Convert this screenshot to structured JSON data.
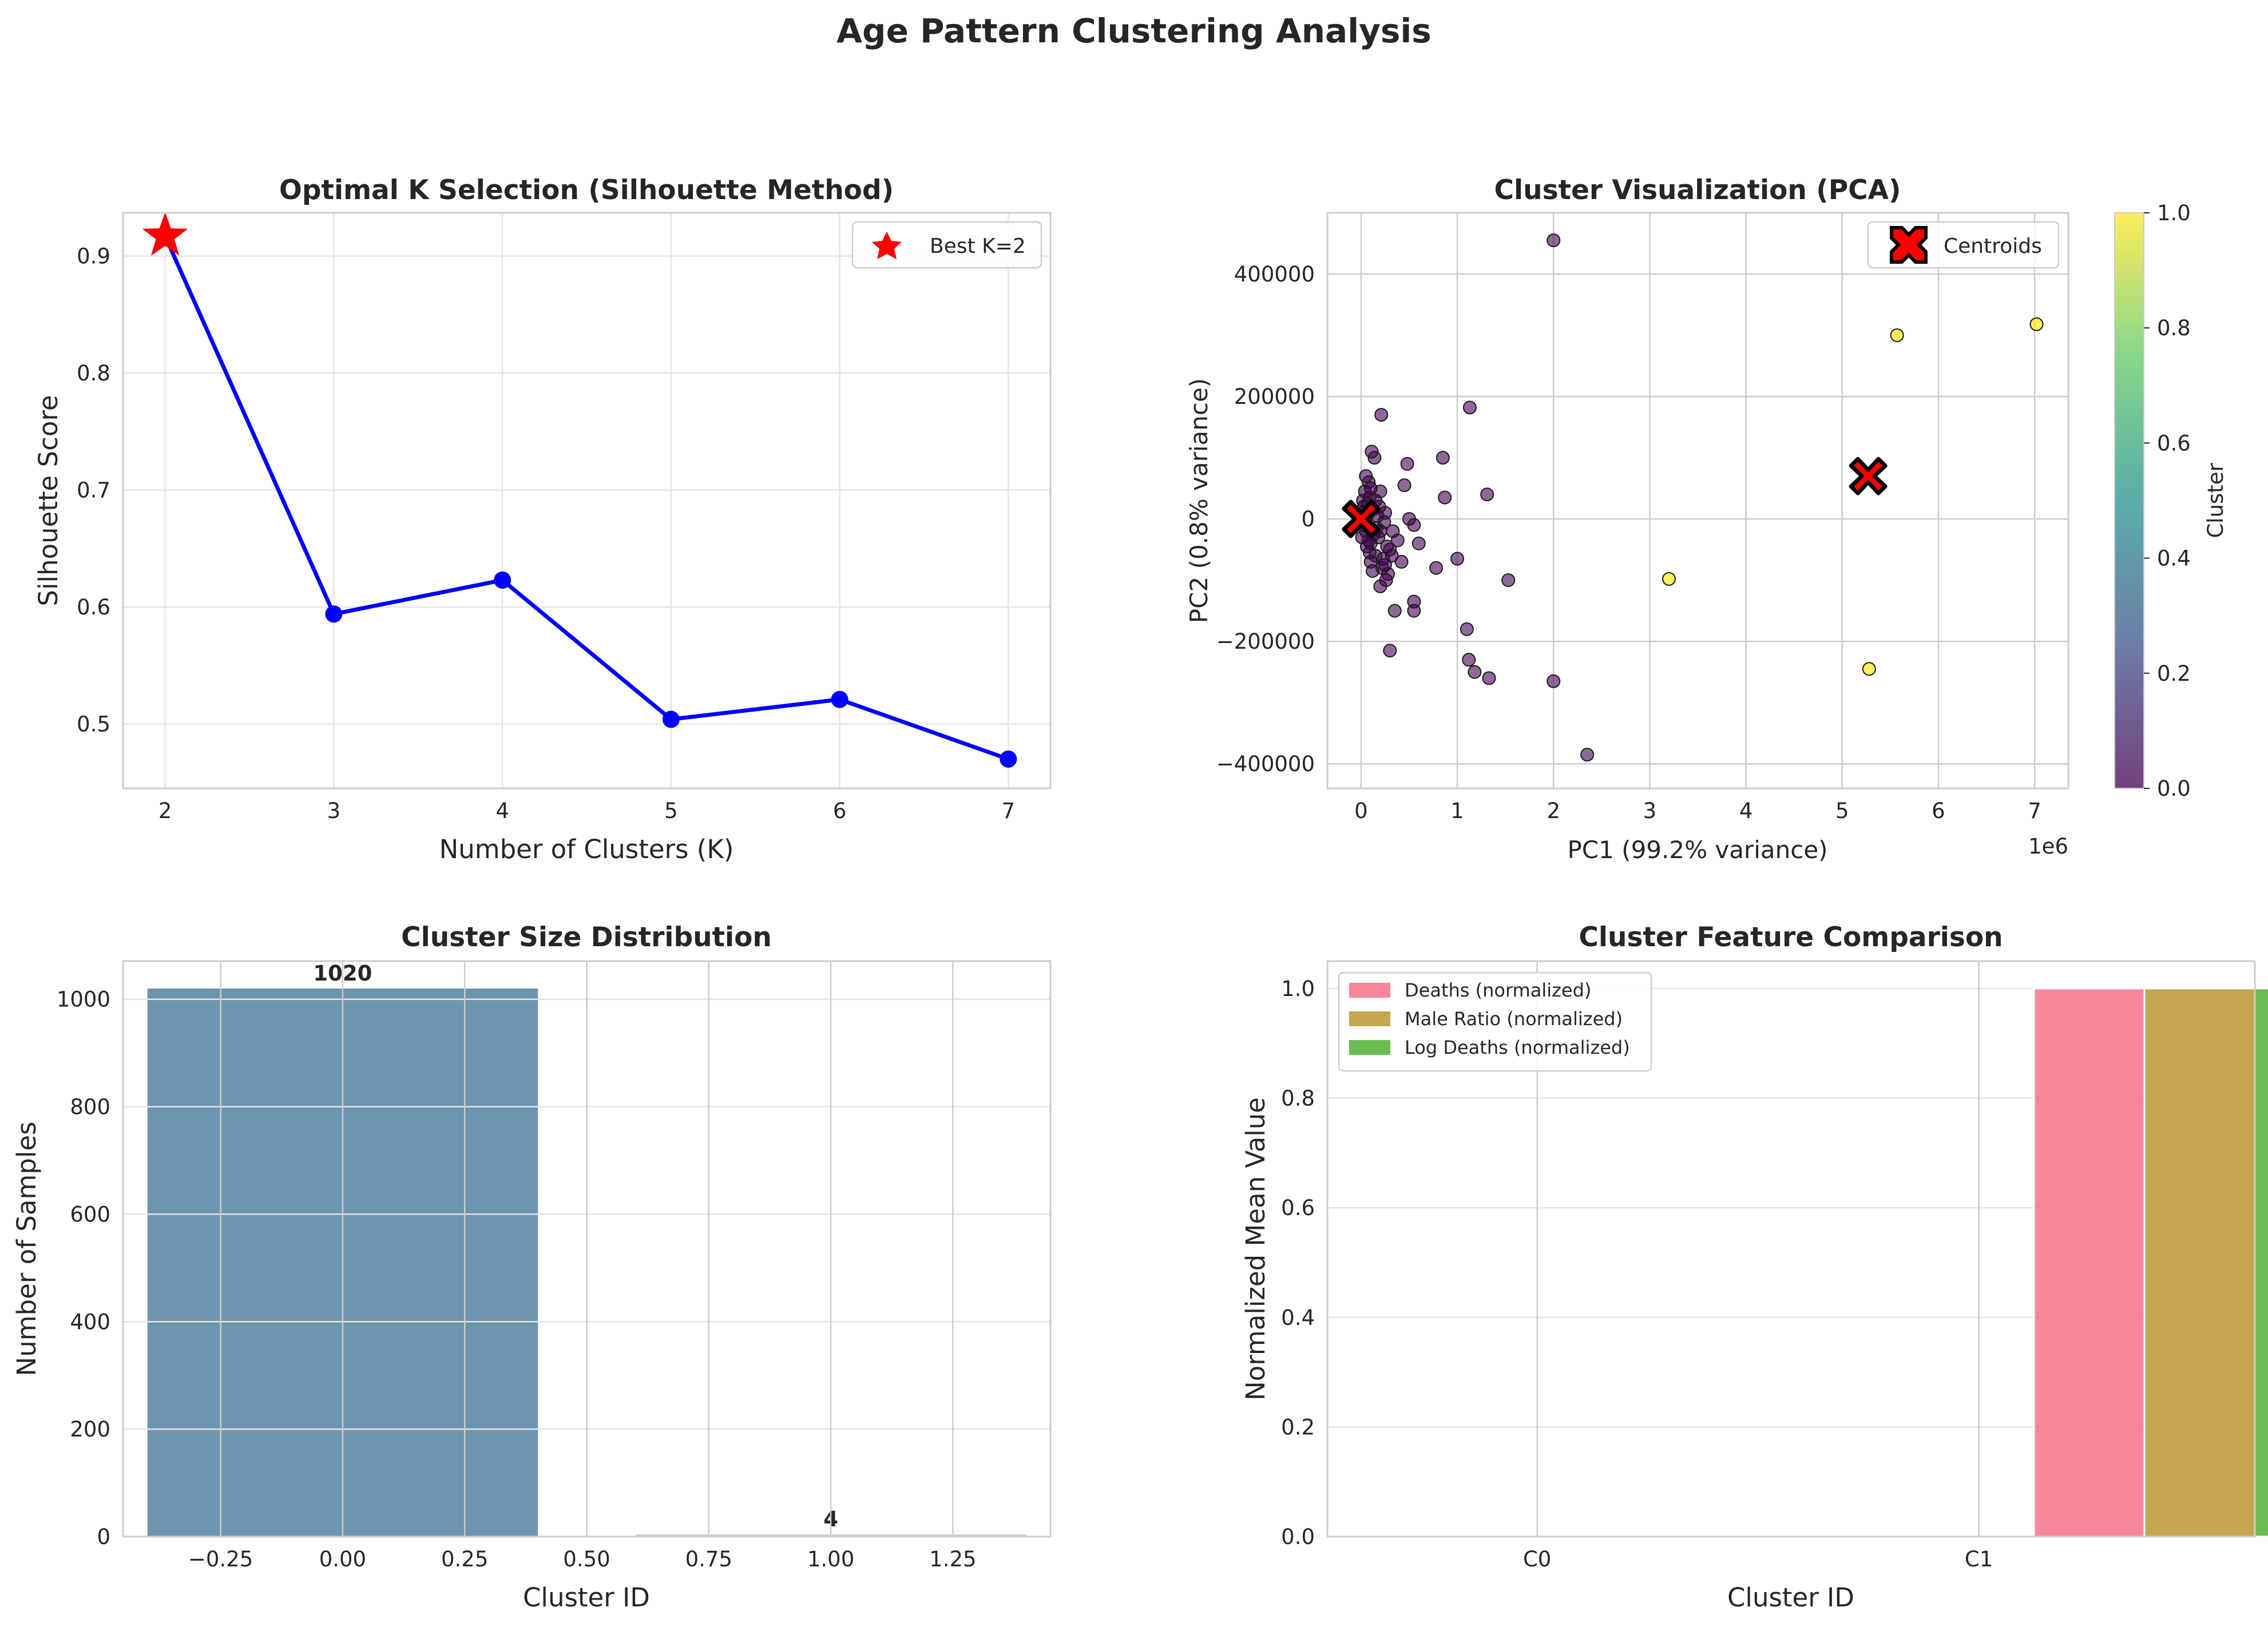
{
  "figure": {
    "title": "Age Pattern Clustering Analysis"
  },
  "colors": {
    "line": "#0000ff",
    "star": "#ff0000",
    "cluster0": "#440154",
    "cluster1": "#fde725",
    "bar0": "#4a7a9b",
    "bar1": "#9ec9d6",
    "feat_deaths": "#f77189",
    "feat_male": "#bb9832",
    "feat_log": "#50b131"
  },
  "chart_data": [
    {
      "type": "line",
      "title": "Optimal K Selection (Silhouette Method)",
      "xlabel": "Number of Clusters (K)",
      "ylabel": "Silhouette Score",
      "x": [
        2,
        3,
        4,
        5,
        6,
        7
      ],
      "y": [
        0.917,
        0.594,
        0.623,
        0.504,
        0.521,
        0.47
      ],
      "xlim": [
        1.75,
        7.25
      ],
      "ylim": [
        0.445,
        0.937
      ],
      "xticks": [
        "2",
        "3",
        "4",
        "5",
        "6",
        "7"
      ],
      "yticks": [
        "0.5",
        "0.6",
        "0.7",
        "0.8",
        "0.9"
      ],
      "highlight": {
        "x": 2,
        "y": 0.917,
        "label": "Best K=2"
      },
      "legend": "top-right",
      "grid": true
    },
    {
      "type": "scatter",
      "title": "Cluster Visualization (PCA)",
      "xlabel": "PC1 (99.2% variance)",
      "ylabel": "PC2 (0.8% variance)",
      "x_offset_text": "1e6",
      "xlim": [
        -0.35,
        7.35
      ],
      "ylim": [
        -440000,
        500000
      ],
      "xticks": [
        "0",
        "1",
        "2",
        "3",
        "4",
        "5",
        "6",
        "7"
      ],
      "yticks": [
        "-400000",
        "-200000",
        "0",
        "200000",
        "400000"
      ],
      "colorbar": {
        "label": "Cluster",
        "ticks": [
          "0.0",
          "0.2",
          "0.4",
          "0.6",
          "0.8",
          "1.0"
        ]
      },
      "cluster0_points": [
        [
          0.0,
          0
        ],
        [
          0.02,
          30000
        ],
        [
          0.05,
          -20000
        ],
        [
          0.08,
          60000
        ],
        [
          0.1,
          -40000
        ],
        [
          0.12,
          15000
        ],
        [
          0.15,
          -60000
        ],
        [
          0.2,
          45000
        ],
        [
          0.03,
          -10000
        ],
        [
          0.07,
          25000
        ],
        [
          0.18,
          -30000
        ],
        [
          0.25,
          10000
        ],
        [
          0.3,
          -50000
        ],
        [
          0.22,
          -80000
        ],
        [
          0.14,
          100000
        ],
        [
          0.11,
          110000
        ],
        [
          0.21,
          170000
        ],
        [
          2.0,
          455000
        ],
        [
          1.13,
          182000
        ],
        [
          0.48,
          90000
        ],
        [
          0.85,
          100000
        ],
        [
          0.45,
          55000
        ],
        [
          0.87,
          35000
        ],
        [
          1.31,
          40000
        ],
        [
          0.5,
          0
        ],
        [
          0.55,
          -10000
        ],
        [
          0.6,
          -40000
        ],
        [
          0.78,
          -80000
        ],
        [
          1.0,
          -65000
        ],
        [
          0.42,
          -70000
        ],
        [
          0.35,
          -150000
        ],
        [
          0.55,
          -135000
        ],
        [
          0.55,
          -150000
        ],
        [
          0.3,
          -215000
        ],
        [
          1.1,
          -180000
        ],
        [
          1.53,
          -100000
        ],
        [
          1.12,
          -230000
        ],
        [
          1.18,
          -250000
        ],
        [
          1.33,
          -260000
        ],
        [
          2.0,
          -265000
        ],
        [
          2.35,
          -385000
        ],
        [
          0.28,
          -90000
        ],
        [
          0.2,
          -110000
        ],
        [
          0.1,
          -70000
        ],
        [
          0.06,
          5000
        ],
        [
          0.16,
          -15000
        ],
        [
          0.24,
          -5000
        ],
        [
          0.04,
          45000
        ],
        [
          0.09,
          -55000
        ],
        [
          0.13,
          -25000
        ],
        [
          0.19,
          20000
        ],
        [
          0.27,
          -45000
        ],
        [
          0.33,
          -20000
        ],
        [
          0.38,
          -35000
        ],
        [
          0.01,
          -30000
        ],
        [
          0.02,
          10000
        ],
        [
          0.06,
          -45000
        ],
        [
          0.09,
          35000
        ],
        [
          0.17,
          5000
        ],
        [
          0.23,
          -65000
        ],
        [
          0.26,
          -100000
        ],
        [
          0.12,
          -85000
        ],
        [
          0.08,
          -35000
        ],
        [
          0.03,
          20000
        ],
        [
          0.15,
          30000
        ],
        [
          0.2,
          -20000
        ],
        [
          0.1,
          50000
        ],
        [
          0.05,
          70000
        ],
        [
          0.25,
          -75000
        ],
        [
          0.32,
          -60000
        ]
      ],
      "cluster1_points": [
        [
          3.2,
          -98000
        ],
        [
          5.57,
          300000
        ],
        [
          7.02,
          318000
        ],
        [
          5.28,
          -245000
        ]
      ],
      "centroids": {
        "label": "Centroids",
        "points": [
          [
            0.0,
            0
          ],
          [
            5.27,
            70000
          ]
        ]
      },
      "legend": "top-right",
      "grid": true
    },
    {
      "type": "bar",
      "title": "Cluster Size Distribution",
      "xlabel": "Cluster ID",
      "ylabel": "Number of Samples",
      "x": [
        0,
        1
      ],
      "values": [
        1020,
        4
      ],
      "value_labels": [
        "1020",
        "4"
      ],
      "bar_width": 0.8,
      "xlim": [
        -0.45,
        1.45
      ],
      "ylim": [
        0,
        1071
      ],
      "xticks": [
        "-0.25",
        "0.00",
        "0.25",
        "0.50",
        "0.75",
        "1.00",
        "1.25"
      ],
      "yticks": [
        "0",
        "200",
        "400",
        "600",
        "800",
        "1000"
      ],
      "grid": true
    },
    {
      "type": "bar",
      "title": "Cluster Feature Comparison",
      "xlabel": "Cluster ID",
      "ylabel": "Normalized Mean Value",
      "categories": [
        "C0",
        "C1"
      ],
      "series": [
        {
          "name": "Deaths (normalized)",
          "values": [
            0.0,
            1.0
          ]
        },
        {
          "name": "Male Ratio (normalized)",
          "values": [
            0.0,
            1.0
          ]
        },
        {
          "name": "Log Deaths (normalized)",
          "values": [
            0.0,
            1.0
          ]
        }
      ],
      "ylim": [
        0,
        1.05
      ],
      "yticks": [
        "0.0",
        "0.2",
        "0.4",
        "0.6",
        "0.8",
        "1.0"
      ],
      "legend": "top-left",
      "grid": true
    }
  ]
}
